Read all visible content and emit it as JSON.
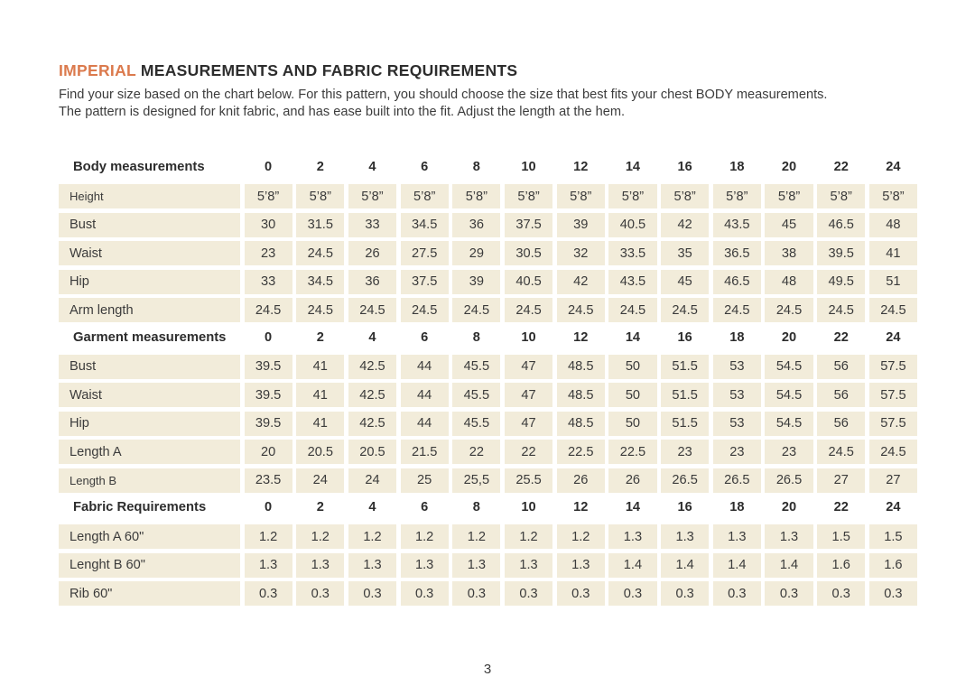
{
  "page": {
    "title_accent": "IMPERIAL",
    "title_rest": " MEASUREMENTS AND FABRIC REQUIREMENTS",
    "intro_line1": "Find your size based on the chart below. For this pattern, you should choose the size that best fits your chest BODY measurements.",
    "intro_line2": "The pattern is designed for knit fabric, and has ease built into the fit. Adjust the length at the hem.",
    "page_number": "3"
  },
  "colors": {
    "accent": "#DB7A4D",
    "cell_background": "#F2ECDA",
    "text": "#3B3B3B"
  },
  "table": {
    "sizes": [
      "0",
      "2",
      "4",
      "6",
      "8",
      "10",
      "12",
      "14",
      "16",
      "18",
      "20",
      "22",
      "24"
    ],
    "sections": [
      {
        "label": "Body measurements",
        "rows": [
          {
            "label": "Height",
            "small": true,
            "values": [
              "5’8”",
              "5’8”",
              "5’8”",
              "5’8”",
              "5’8”",
              "5’8”",
              "5’8”",
              "5’8”",
              "5’8”",
              "5’8”",
              "5’8”",
              "5’8”",
              "5’8”"
            ]
          },
          {
            "label": "Bust",
            "values": [
              "30",
              "31.5",
              "33",
              "34.5",
              "36",
              "37.5",
              "39",
              "40.5",
              "42",
              "43.5",
              "45",
              "46.5",
              "48"
            ]
          },
          {
            "label": "Waist",
            "values": [
              "23",
              "24.5",
              "26",
              "27.5",
              "29",
              "30.5",
              "32",
              "33.5",
              "35",
              "36.5",
              "38",
              "39.5",
              "41"
            ]
          },
          {
            "label": "Hip",
            "values": [
              "33",
              "34.5",
              "36",
              "37.5",
              "39",
              "40.5",
              "42",
              "43.5",
              "45",
              "46.5",
              "48",
              "49.5",
              "51"
            ]
          },
          {
            "label": "Arm length",
            "values": [
              "24.5",
              "24.5",
              "24.5",
              "24.5",
              "24.5",
              "24.5",
              "24.5",
              "24.5",
              "24.5",
              "24.5",
              "24.5",
              "24.5",
              "24.5"
            ]
          }
        ]
      },
      {
        "label": "Garment measurements",
        "rows": [
          {
            "label": "Bust",
            "values": [
              "39.5",
              "41",
              "42.5",
              "44",
              "45.5",
              "47",
              "48.5",
              "50",
              "51.5",
              "53",
              "54.5",
              "56",
              "57.5"
            ]
          },
          {
            "label": "Waist",
            "values": [
              "39.5",
              "41",
              "42.5",
              "44",
              "45.5",
              "47",
              "48.5",
              "50",
              "51.5",
              "53",
              "54.5",
              "56",
              "57.5"
            ]
          },
          {
            "label": "Hip",
            "values": [
              "39.5",
              "41",
              "42.5",
              "44",
              "45.5",
              "47",
              "48.5",
              "50",
              "51.5",
              "53",
              "54.5",
              "56",
              "57.5"
            ]
          },
          {
            "label": "Length A",
            "values": [
              "20",
              "20.5",
              "20.5",
              "21.5",
              "22",
              "22",
              "22.5",
              "22.5",
              "23",
              "23",
              "23",
              "24.5",
              "24.5"
            ]
          },
          {
            "label": "Length B",
            "small": true,
            "values": [
              "23.5",
              "24",
              "24",
              "25",
              "25,5",
              "25.5",
              "26",
              "26",
              "26.5",
              "26.5",
              "26.5",
              "27",
              "27"
            ]
          }
        ]
      },
      {
        "label": "Fabric Requirements",
        "rows": [
          {
            "label": "Length A 60\"",
            "values": [
              "1.2",
              "1.2",
              "1.2",
              "1.2",
              "1.2",
              "1.2",
              "1.2",
              "1.3",
              "1.3",
              "1.3",
              "1.3",
              "1.5",
              "1.5"
            ]
          },
          {
            "label": "Lenght B 60\"",
            "values": [
              "1.3",
              "1.3",
              "1.3",
              "1.3",
              "1.3",
              "1.3",
              "1.3",
              "1.4",
              "1.4",
              "1.4",
              "1.4",
              "1.6",
              "1.6"
            ]
          },
          {
            "label": "Rib 60\"",
            "values": [
              "0.3",
              "0.3",
              "0.3",
              "0.3",
              "0.3",
              "0.3",
              "0.3",
              "0.3",
              "0.3",
              "0.3",
              "0.3",
              "0.3",
              "0.3"
            ]
          }
        ]
      }
    ]
  }
}
